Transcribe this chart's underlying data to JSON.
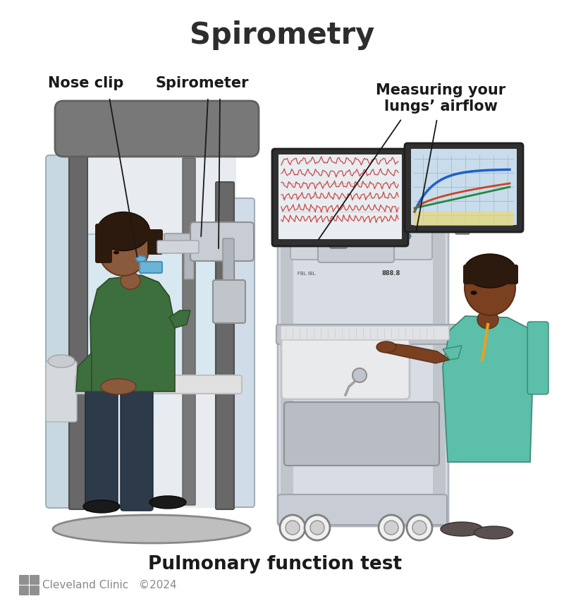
{
  "title": "Spirometry",
  "subtitle": "Pulmonary function test",
  "footer_clinic": "Cleveland Clinic",
  "footer_year": "©2024",
  "label_nose_clip": "Nose clip",
  "label_spirometer": "Spirometer",
  "label_measuring": "Measuring your\nlungs’ airflow",
  "bg_color": "#ffffff",
  "title_color": "#2d2d2d",
  "label_color": "#1a1a1a",
  "subtitle_color": "#1a1a1a",
  "footer_color": "#888888",
  "patient_skin": "#8b5a3c",
  "patient_hair": "#2d1a0e",
  "patient_shirt": "#3d6e3d",
  "patient_pants": "#2d3a4a",
  "tech_skin": "#7a4020",
  "tech_scrubs": "#5bbfaa",
  "tech_hair": "#2d1a0e",
  "booth_frame": "#707070",
  "booth_glass": "#c5dde8",
  "booth_interior": "#e8ecf0",
  "booth_base": "#b0b0b0",
  "cart_main": "#d0d4dc",
  "cart_dark": "#b0b5bc",
  "screen_bg_left": "#e8edf0",
  "screen_bg_right": "#c8dcec",
  "note_line_color": "#1a1a1a",
  "line_width": 1.3
}
